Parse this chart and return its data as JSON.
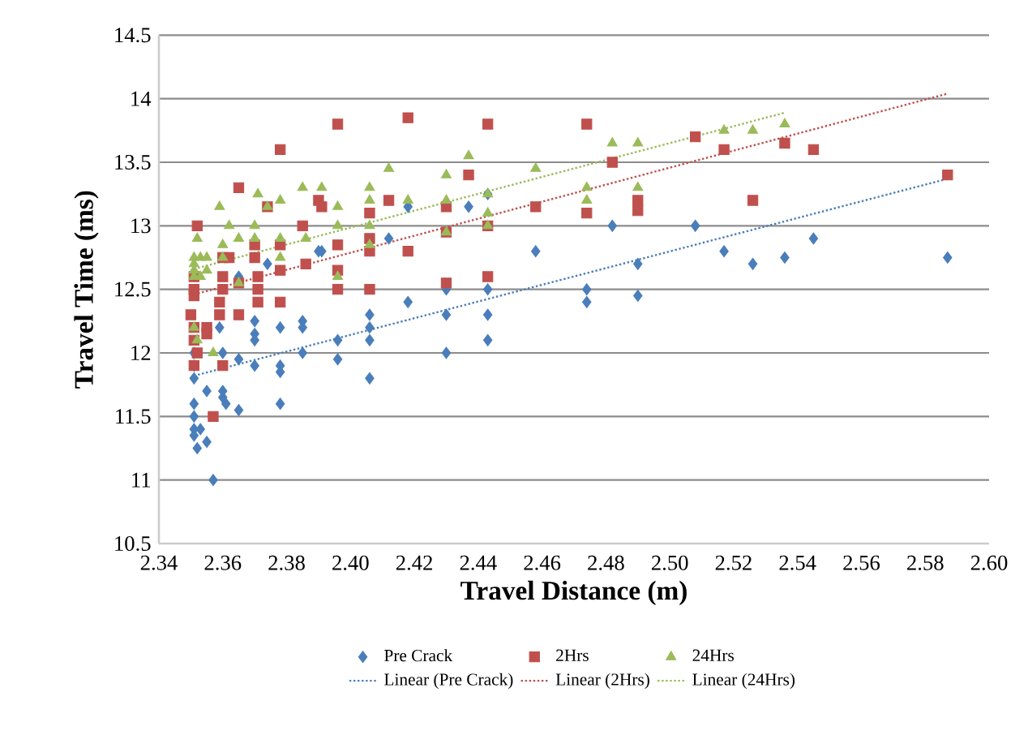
{
  "chart_data": {
    "type": "scatter",
    "xlabel": "Travel Distance (m)",
    "ylabel": "Travel Time (ms)",
    "xlim": [
      2.34,
      2.6
    ],
    "ylim": [
      10.5,
      14.5
    ],
    "xticks": [
      2.34,
      2.36,
      2.38,
      {
        "value": 2.4,
        "label": "2.40"
      },
      2.42,
      2.44,
      2.46,
      2.48,
      {
        "value": 2.5,
        "label": "2.50"
      },
      2.52,
      2.54,
      2.56,
      2.58,
      {
        "value": 2.6,
        "label": "2.60"
      }
    ],
    "yticks": [
      10.5,
      11,
      11.5,
      12,
      12.5,
      13,
      13.5,
      14,
      14.5
    ],
    "grid": "y",
    "legend": "bottom",
    "series": [
      {
        "name": "Pre Crack",
        "type": "scatter",
        "marker": "diamond",
        "color": "#4a7ebb",
        "x": [
          2.351,
          2.351,
          2.351,
          2.351,
          2.351,
          2.351,
          2.351,
          2.352,
          2.353,
          2.355,
          2.355,
          2.357,
          2.359,
          2.36,
          2.36,
          2.36,
          2.361,
          2.365,
          2.365,
          2.365,
          2.37,
          2.37,
          2.37,
          2.37,
          2.374,
          2.378,
          2.378,
          2.378,
          2.378,
          2.385,
          2.385,
          2.385,
          2.39,
          2.391,
          2.396,
          2.396,
          2.406,
          2.406,
          2.406,
          2.406,
          2.412,
          2.418,
          2.418,
          2.43,
          2.43,
          2.43,
          2.437,
          2.443,
          2.443,
          2.443,
          2.443,
          2.458,
          2.474,
          2.474,
          2.482,
          2.49,
          2.49,
          2.508,
          2.517,
          2.526,
          2.536,
          2.545,
          2.587
        ],
        "values": [
          12.0,
          11.9,
          11.8,
          11.6,
          11.5,
          11.4,
          11.35,
          11.25,
          11.4,
          11.7,
          11.3,
          11.0,
          12.2,
          12.0,
          11.7,
          11.65,
          11.6,
          12.6,
          11.95,
          11.55,
          12.25,
          12.15,
          12.1,
          11.9,
          12.7,
          12.2,
          11.9,
          11.85,
          11.6,
          12.25,
          12.2,
          12.0,
          12.8,
          12.8,
          12.1,
          11.95,
          12.3,
          12.2,
          12.1,
          11.8,
          12.9,
          12.4,
          13.15,
          12.5,
          12.3,
          12.0,
          13.15,
          13.25,
          12.5,
          12.3,
          12.1,
          12.8,
          12.5,
          12.4,
          13.0,
          12.7,
          12.45,
          13.0,
          12.8,
          12.7,
          12.75,
          12.9,
          12.75
        ]
      },
      {
        "name": "2Hrs",
        "type": "scatter",
        "marker": "square",
        "color": "#c0504d",
        "x": [
          2.352,
          2.351,
          2.351,
          2.351,
          2.35,
          2.351,
          2.351,
          2.352,
          2.351,
          2.355,
          2.355,
          2.357,
          2.36,
          2.36,
          2.36,
          2.359,
          2.359,
          2.36,
          2.362,
          2.365,
          2.365,
          2.365,
          2.37,
          2.37,
          2.371,
          2.371,
          2.371,
          2.374,
          2.378,
          2.378,
          2.378,
          2.378,
          2.385,
          2.386,
          2.39,
          2.396,
          2.418,
          2.443,
          2.474,
          2.391,
          2.412,
          2.437,
          2.458,
          2.482,
          2.396,
          2.396,
          2.396,
          2.406,
          2.406,
          2.406,
          2.406,
          2.418,
          2.43,
          2.43,
          2.43,
          2.443,
          2.443,
          2.474,
          2.508,
          2.517,
          2.536,
          2.545,
          2.49,
          2.49,
          2.526,
          2.587
        ],
        "values": [
          13.0,
          12.6,
          12.5,
          12.45,
          12.3,
          12.2,
          12.1,
          12.0,
          11.9,
          12.2,
          12.15,
          11.5,
          12.75,
          12.6,
          12.5,
          12.4,
          12.3,
          11.9,
          12.75,
          13.3,
          12.3,
          12.55,
          12.85,
          12.75,
          12.6,
          12.5,
          12.4,
          13.15,
          13.6,
          12.85,
          12.65,
          12.4,
          13.0,
          12.7,
          13.2,
          13.8,
          13.85,
          13.8,
          13.8,
          13.15,
          13.2,
          13.4,
          13.15,
          13.5,
          12.85,
          12.65,
          12.5,
          13.1,
          12.9,
          12.8,
          12.5,
          12.8,
          13.15,
          12.95,
          12.55,
          13.0,
          12.6,
          13.1,
          13.7,
          13.6,
          13.65,
          13.6,
          13.2,
          13.12,
          13.2,
          13.4
        ]
      },
      {
        "name": "24Hrs",
        "type": "scatter",
        "marker": "triangle",
        "color": "#9bbb59",
        "x": [
          2.352,
          2.351,
          2.351,
          2.351,
          2.351,
          2.353,
          2.353,
          2.351,
          2.352,
          2.355,
          2.355,
          2.357,
          2.359,
          2.36,
          2.36,
          2.362,
          2.365,
          2.365,
          2.37,
          2.37,
          2.371,
          2.374,
          2.378,
          2.378,
          2.378,
          2.385,
          2.386,
          2.391,
          2.396,
          2.396,
          2.396,
          2.406,
          2.406,
          2.406,
          2.406,
          2.412,
          2.418,
          2.43,
          2.43,
          2.43,
          2.437,
          2.443,
          2.443,
          2.443,
          2.458,
          2.474,
          2.474,
          2.482,
          2.49,
          2.49,
          2.517,
          2.526,
          2.536
        ],
        "values": [
          12.9,
          12.75,
          12.7,
          12.65,
          12.6,
          12.75,
          12.6,
          12.2,
          12.1,
          12.75,
          12.65,
          12.0,
          13.15,
          12.85,
          12.75,
          13.0,
          12.9,
          12.55,
          13.0,
          12.9,
          13.25,
          13.15,
          13.2,
          12.9,
          12.75,
          13.3,
          12.9,
          13.3,
          13.15,
          13.0,
          12.6,
          13.3,
          13.2,
          13.0,
          12.85,
          13.45,
          13.2,
          13.4,
          13.2,
          12.95,
          13.55,
          13.25,
          13.1,
          13.0,
          13.45,
          13.3,
          13.2,
          13.65,
          13.65,
          13.3,
          13.75,
          13.75,
          13.8
        ]
      },
      {
        "name": "Linear (Pre Crack)",
        "type": "line",
        "marker": "none",
        "line_style": "dotted",
        "color": "#4a7ebb",
        "x": [
          2.351,
          2.587
        ],
        "values": [
          11.82,
          13.37
        ]
      },
      {
        "name": "Linear (2Hrs)",
        "type": "line",
        "marker": "none",
        "line_style": "dotted",
        "color": "#c0504d",
        "x": [
          2.351,
          2.587
        ],
        "values": [
          12.46,
          14.04
        ]
      },
      {
        "name": "Linear (24Hrs)",
        "type": "line",
        "marker": "none",
        "line_style": "dotted",
        "color": "#9bbb59",
        "x": [
          2.351,
          2.536
        ],
        "values": [
          12.66,
          13.89
        ]
      }
    ]
  }
}
